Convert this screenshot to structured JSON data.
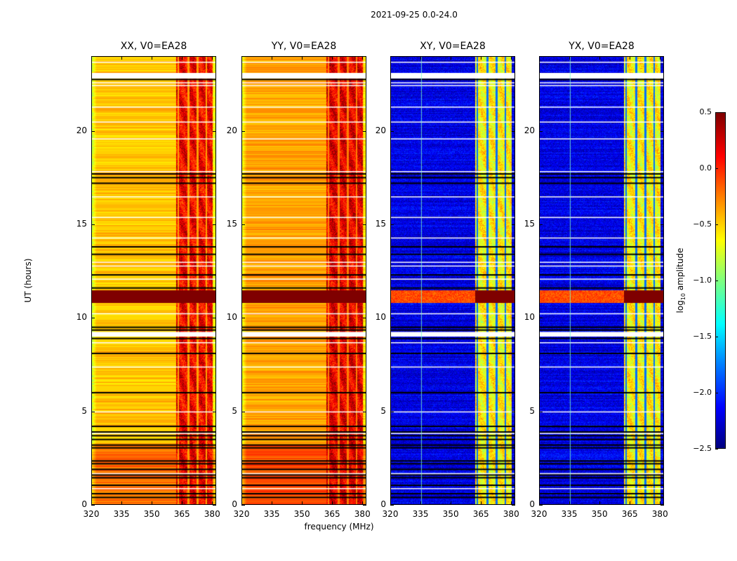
{
  "suptitle": "2021-09-25 0.0-24.0",
  "chart_data": [
    {
      "type": "heatmap",
      "title": "XX, V0=EA28",
      "polarization": "XX",
      "xlabel": "",
      "ylabel": "UT (hours)",
      "xlim": [
        320,
        382
      ],
      "ylim": [
        0,
        24
      ],
      "xticks": [
        320,
        335,
        350,
        365,
        380
      ],
      "yticks": [
        0,
        5,
        10,
        15,
        20
      ],
      "base_log_amp": -0.45,
      "rfi_band_mhz": [
        362,
        380
      ],
      "rfi_log_amp": 0.05
    },
    {
      "type": "heatmap",
      "title": "YY, V0=EA28",
      "polarization": "YY",
      "xlabel": "frequency (MHz)",
      "ylabel": "",
      "xlim": [
        320,
        382
      ],
      "ylim": [
        0,
        24
      ],
      "xticks": [
        320,
        335,
        350,
        365,
        380
      ],
      "yticks": [
        0,
        5,
        10,
        15,
        20
      ],
      "base_log_amp": -0.35,
      "rfi_band_mhz": [
        362,
        380
      ],
      "rfi_log_amp": 0.1
    },
    {
      "type": "heatmap",
      "title": "XY, V0=EA28",
      "polarization": "XY",
      "xlabel": "",
      "ylabel": "",
      "xlim": [
        320,
        382
      ],
      "ylim": [
        0,
        24
      ],
      "xticks": [
        320,
        335,
        350,
        365,
        380
      ],
      "yticks": [
        0,
        5,
        10,
        15,
        20
      ],
      "base_log_amp": -2.2,
      "rfi_band_mhz": [
        362,
        380
      ],
      "rfi_log_amp": -0.7
    },
    {
      "type": "heatmap",
      "title": "YX, V0=EA28",
      "polarization": "YX",
      "xlabel": "",
      "ylabel": "",
      "xlim": [
        320,
        382
      ],
      "ylim": [
        0,
        24
      ],
      "xticks": [
        320,
        335,
        350,
        365,
        380
      ],
      "yticks": [
        0,
        5,
        10,
        15,
        20
      ],
      "base_log_amp": -2.2,
      "rfi_band_mhz": [
        362,
        380
      ],
      "rfi_log_amp": -0.7
    }
  ],
  "colorbar": {
    "label_main": "log",
    "label_sub": "10",
    "label_rest": " amplitude",
    "ticks": [
      "0.5",
      "0.0",
      "−0.5",
      "−1.0",
      "−1.5",
      "−2.0",
      "−2.5"
    ],
    "range": [
      -2.5,
      0.5
    ],
    "colormap": "jet"
  },
  "flags": {
    "white_gap_hours": [
      [
        22.8,
        23.1
      ],
      [
        9.0,
        9.25
      ]
    ],
    "strong_rfi_hours": [
      10.8,
      11.5
    ],
    "black_line_hours": [
      22.75,
      17.7,
      17.5,
      17.2,
      13.8,
      13.4,
      12.3,
      11.6,
      9.5,
      9.35,
      8.9,
      8.1,
      6.0,
      4.2,
      3.9,
      3.7,
      3.5,
      3.2,
      3.05,
      2.35,
      2.2,
      1.9,
      1.6,
      1.45,
      1.05,
      0.6,
      0.4
    ],
    "white_line_hours": [
      23.7,
      22.6,
      22.45,
      21.3,
      20.5,
      19.6,
      17.85,
      16.5,
      15.4,
      14.3,
      13.0,
      12.8,
      12.1,
      10.25,
      8.7,
      7.4,
      5.0,
      3.85,
      1.7,
      0.9
    ]
  },
  "axes": {
    "ylabel": "UT (hours)",
    "xlabel": "frequency (MHz)"
  }
}
